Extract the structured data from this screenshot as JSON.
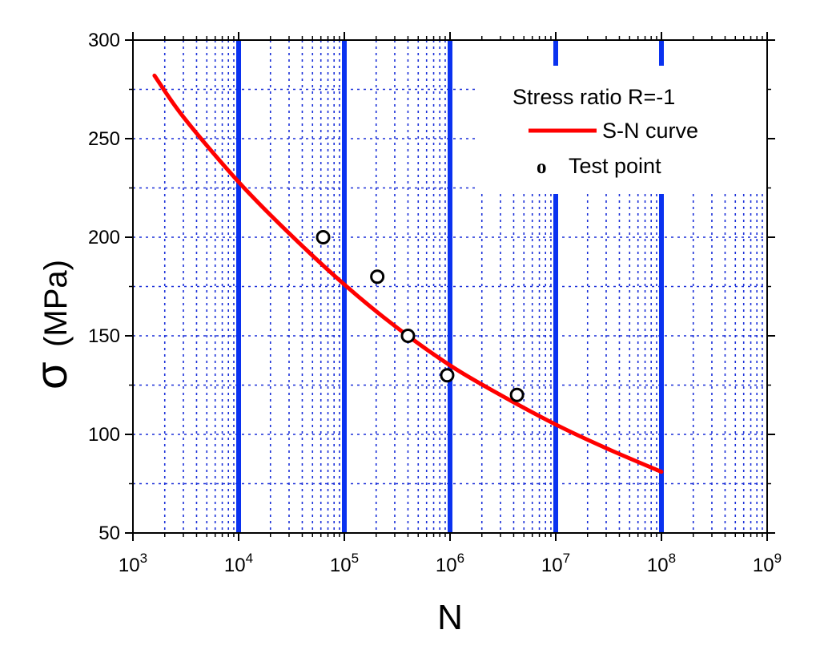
{
  "chart_data": {
    "type": "line",
    "title": "",
    "xlabel": "N",
    "ylabel_symbol": "σ",
    "ylabel_unit": "(MPa)",
    "x_scale": "log10",
    "xlim": [
      1000,
      1000000000
    ],
    "ylim": [
      50,
      300
    ],
    "x_ticks": [
      3,
      4,
      5,
      6,
      7,
      8,
      9
    ],
    "x_tick_base": "10",
    "y_ticks": [
      50,
      100,
      150,
      200,
      250,
      300
    ],
    "grid": true,
    "legend_position": "top-right",
    "legend": {
      "title": "Stress ratio R=-1",
      "curve_label": "S-N curve",
      "points_label": "Test point",
      "points_marker": "o"
    },
    "series": [
      {
        "name": "S-N curve",
        "kind": "line",
        "color": "#ff0000",
        "x": [
          1600,
          3000,
          10000,
          30000,
          100000,
          300000,
          1000000,
          3000000,
          10000000,
          30000000,
          100000000
        ],
        "y": [
          282,
          261,
          228,
          202,
          176,
          155,
          135,
          120,
          105,
          93,
          81
        ]
      },
      {
        "name": "Test point",
        "kind": "scatter",
        "color": "#000000",
        "x": [
          63000,
          205000,
          400000,
          940000,
          4300000
        ],
        "y": [
          200,
          180,
          150,
          130,
          120
        ]
      }
    ],
    "colors": {
      "major_grid": "#0a32f0",
      "minor_grid": "#1a2fd8",
      "curve": "#ff0000",
      "markers": "#000000"
    }
  }
}
